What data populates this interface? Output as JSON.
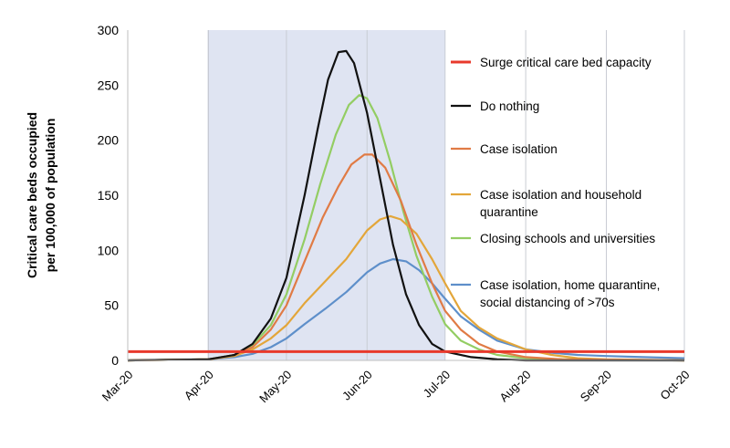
{
  "chart_data": {
    "type": "line",
    "title": "",
    "ylabel_lines": [
      "Critical care beds occupied",
      "per 100,000 of population"
    ],
    "xlabel": "",
    "x_ticks": [
      "Mar-20",
      "Apr-20",
      "May-20",
      "Jun-20",
      "Jul-20",
      "Aug-20",
      "Sep-20",
      "Oct-20"
    ],
    "xlim": [
      "2020-03-01",
      "2020-10-01"
    ],
    "ylim": [
      0,
      300
    ],
    "y_ticks": [
      0,
      50,
      100,
      150,
      200,
      250,
      300
    ],
    "grid": "vertical lines at month ticks",
    "intervention_period": [
      "2020-04-01",
      "2020-07-01"
    ],
    "intervention_color": "#dfe4f2",
    "legend_position": "right",
    "surge_capacity": {
      "name": "Surge critical care bed capacity",
      "value": 8,
      "color": "#e8392c"
    },
    "series": [
      {
        "name": "Do nothing",
        "color": "#111111",
        "points": [
          [
            "2020-03-01",
            0
          ],
          [
            "2020-04-01",
            1
          ],
          [
            "2020-04-11",
            5
          ],
          [
            "2020-04-18",
            15
          ],
          [
            "2020-04-25",
            38
          ],
          [
            "2020-05-01",
            75
          ],
          [
            "2020-05-08",
            150
          ],
          [
            "2020-05-13",
            210
          ],
          [
            "2020-05-17",
            255
          ],
          [
            "2020-05-21",
            280
          ],
          [
            "2020-05-24",
            281
          ],
          [
            "2020-05-27",
            270
          ],
          [
            "2020-06-01",
            225
          ],
          [
            "2020-06-06",
            165
          ],
          [
            "2020-06-11",
            105
          ],
          [
            "2020-06-16",
            60
          ],
          [
            "2020-06-21",
            32
          ],
          [
            "2020-06-26",
            15
          ],
          [
            "2020-07-01",
            8
          ],
          [
            "2020-07-11",
            3
          ],
          [
            "2020-07-21",
            1
          ],
          [
            "2020-08-01",
            0
          ],
          [
            "2020-10-01",
            0
          ]
        ]
      },
      {
        "name": "Case isolation",
        "color": "#e07b45",
        "points": [
          [
            "2020-03-01",
            0
          ],
          [
            "2020-04-01",
            1
          ],
          [
            "2020-04-11",
            5
          ],
          [
            "2020-04-18",
            12
          ],
          [
            "2020-04-25",
            28
          ],
          [
            "2020-05-01",
            50
          ],
          [
            "2020-05-08",
            90
          ],
          [
            "2020-05-15",
            130
          ],
          [
            "2020-05-21",
            158
          ],
          [
            "2020-05-26",
            178
          ],
          [
            "2020-05-31",
            187
          ],
          [
            "2020-06-03",
            187
          ],
          [
            "2020-06-08",
            175
          ],
          [
            "2020-06-14",
            145
          ],
          [
            "2020-06-20",
            105
          ],
          [
            "2020-06-26",
            70
          ],
          [
            "2020-07-01",
            45
          ],
          [
            "2020-07-07",
            28
          ],
          [
            "2020-07-14",
            15
          ],
          [
            "2020-07-21",
            8
          ],
          [
            "2020-08-01",
            3
          ],
          [
            "2020-08-15",
            1
          ],
          [
            "2020-10-01",
            0
          ]
        ]
      },
      {
        "name": "Case isolation and household quarantine",
        "color": "#e3a63a",
        "points": [
          [
            "2020-03-01",
            0
          ],
          [
            "2020-04-01",
            1
          ],
          [
            "2020-04-11",
            4
          ],
          [
            "2020-04-18",
            10
          ],
          [
            "2020-04-25",
            20
          ],
          [
            "2020-05-01",
            32
          ],
          [
            "2020-05-08",
            52
          ],
          [
            "2020-05-16",
            72
          ],
          [
            "2020-05-24",
            92
          ],
          [
            "2020-06-01",
            118
          ],
          [
            "2020-06-06",
            128
          ],
          [
            "2020-06-10",
            131
          ],
          [
            "2020-06-14",
            128
          ],
          [
            "2020-06-20",
            115
          ],
          [
            "2020-06-26",
            92
          ],
          [
            "2020-07-01",
            70
          ],
          [
            "2020-07-07",
            45
          ],
          [
            "2020-07-14",
            30
          ],
          [
            "2020-07-21",
            20
          ],
          [
            "2020-08-01",
            10
          ],
          [
            "2020-08-11",
            5
          ],
          [
            "2020-08-21",
            2
          ],
          [
            "2020-09-01",
            1
          ],
          [
            "2020-10-01",
            0
          ]
        ]
      },
      {
        "name": "Closing schools and universities",
        "color": "#93cd63",
        "points": [
          [
            "2020-03-01",
            0
          ],
          [
            "2020-04-01",
            1
          ],
          [
            "2020-04-11",
            5
          ],
          [
            "2020-04-18",
            14
          ],
          [
            "2020-04-25",
            32
          ],
          [
            "2020-05-01",
            60
          ],
          [
            "2020-05-08",
            110
          ],
          [
            "2020-05-14",
            160
          ],
          [
            "2020-05-20",
            205
          ],
          [
            "2020-05-25",
            232
          ],
          [
            "2020-05-29",
            241
          ],
          [
            "2020-06-01",
            238
          ],
          [
            "2020-06-05",
            220
          ],
          [
            "2020-06-10",
            180
          ],
          [
            "2020-06-15",
            135
          ],
          [
            "2020-06-20",
            95
          ],
          [
            "2020-06-26",
            58
          ],
          [
            "2020-07-01",
            33
          ],
          [
            "2020-07-07",
            18
          ],
          [
            "2020-07-14",
            10
          ],
          [
            "2020-07-21",
            5
          ],
          [
            "2020-08-01",
            2
          ],
          [
            "2020-08-15",
            1
          ],
          [
            "2020-10-01",
            0
          ]
        ]
      },
      {
        "name": "Case isolation, home quarantine, social distancing of >70s",
        "color": "#5e8fca",
        "points": [
          [
            "2020-03-01",
            0
          ],
          [
            "2020-04-01",
            1
          ],
          [
            "2020-04-11",
            3
          ],
          [
            "2020-04-18",
            6
          ],
          [
            "2020-04-25",
            12
          ],
          [
            "2020-05-01",
            20
          ],
          [
            "2020-05-08",
            33
          ],
          [
            "2020-05-16",
            47
          ],
          [
            "2020-05-24",
            62
          ],
          [
            "2020-06-01",
            80
          ],
          [
            "2020-06-06",
            88
          ],
          [
            "2020-06-11",
            92
          ],
          [
            "2020-06-16",
            90
          ],
          [
            "2020-06-21",
            82
          ],
          [
            "2020-06-26",
            70
          ],
          [
            "2020-07-01",
            56
          ],
          [
            "2020-07-07",
            40
          ],
          [
            "2020-07-14",
            28
          ],
          [
            "2020-07-21",
            18
          ],
          [
            "2020-08-01",
            10
          ],
          [
            "2020-08-11",
            7
          ],
          [
            "2020-08-21",
            5
          ],
          [
            "2020-09-01",
            4
          ],
          [
            "2020-09-15",
            3
          ],
          [
            "2020-10-01",
            2
          ]
        ]
      }
    ]
  }
}
